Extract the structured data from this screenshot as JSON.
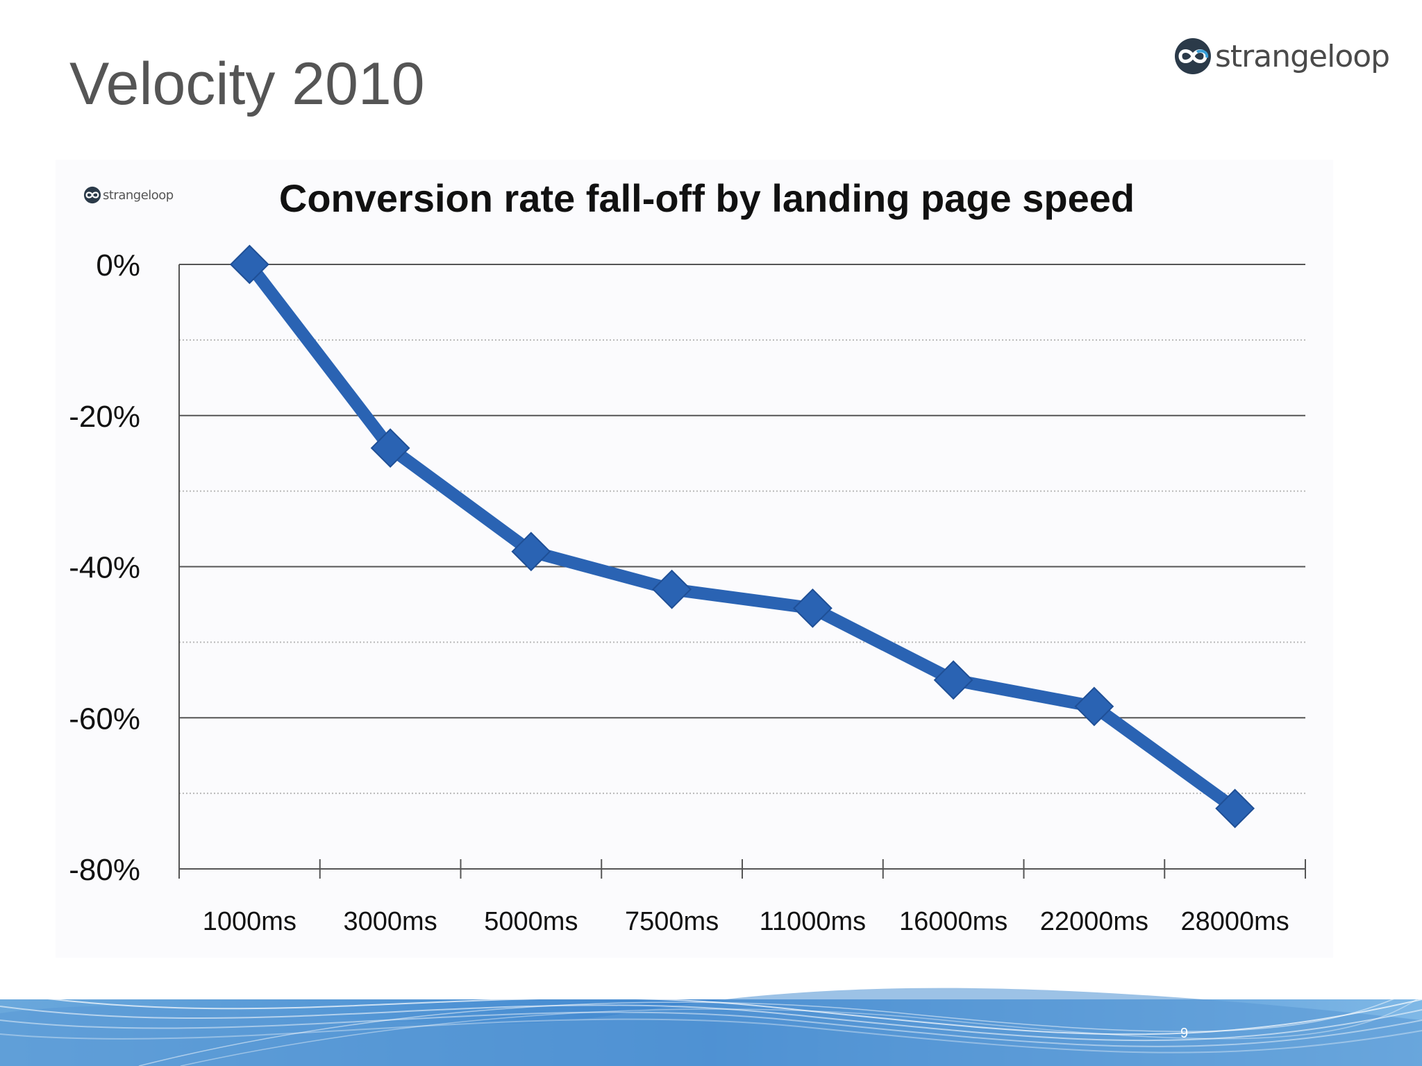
{
  "slide": {
    "title": "Velocity 2010",
    "page_number": "9"
  },
  "logo": {
    "text": "strangeloop",
    "icon": "infinity-loop-icon"
  },
  "colors": {
    "series": "#2a63b3",
    "title": "#555555",
    "axis_text": "#111111",
    "footer_blue": "#3f86cf"
  },
  "chart_data": {
    "type": "line",
    "title": "Conversion rate fall-off by landing page speed",
    "categories": [
      "1000ms",
      "3000ms",
      "5000ms",
      "7500ms",
      "11000ms",
      "16000ms",
      "22000ms",
      "28000ms"
    ],
    "values": [
      0,
      -24.3,
      -38,
      -43,
      -45.5,
      -55,
      -58.5,
      -72
    ],
    "y_ticks": [
      "0%",
      "-20%",
      "-40%",
      "-60%",
      "-80%"
    ],
    "ylim": [
      -80,
      0
    ],
    "grid": "major solid, minor dotted",
    "marker": "diamond",
    "xlabel": "",
    "ylabel": ""
  }
}
